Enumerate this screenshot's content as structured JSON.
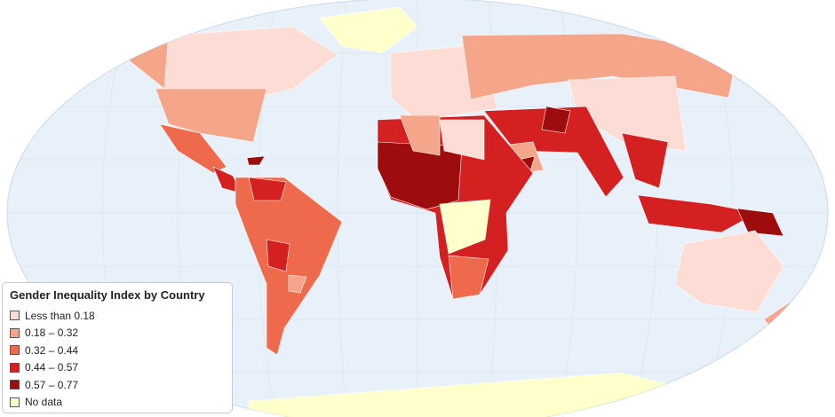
{
  "legend": {
    "title": "Gender Inequality Index by Country",
    "items": [
      {
        "label": "Less than 0.18",
        "color": "#fcdcd4"
      },
      {
        "label": "0.18 – 0.32",
        "color": "#f4a58a"
      },
      {
        "label": "0.32 – 0.44",
        "color": "#ef6a4c"
      },
      {
        "label": "0.44 – 0.57",
        "color": "#d42020"
      },
      {
        "label": "0.57 – 0.77",
        "color": "#9e0d0d"
      },
      {
        "label": "No data",
        "color": "#ffffcc"
      }
    ]
  }
}
